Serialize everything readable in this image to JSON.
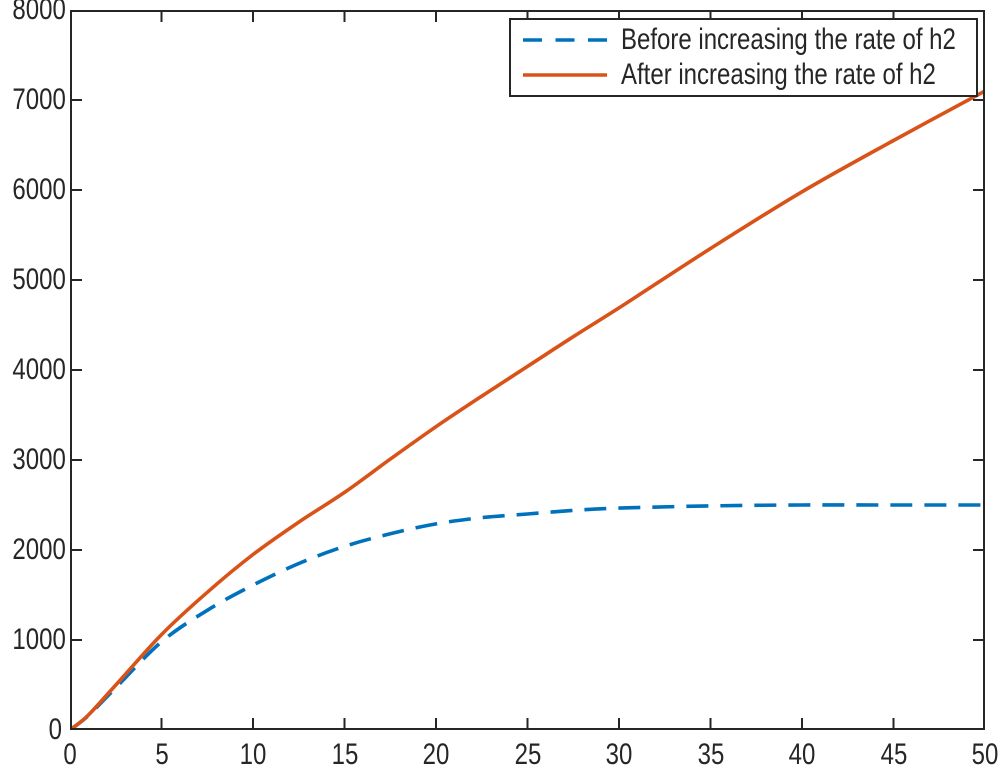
{
  "figure": {
    "background": "#ffffff",
    "axes_color": "#262626",
    "text_color": "#262626"
  },
  "chart_data": {
    "type": "line",
    "title": "",
    "xlabel": "",
    "ylabel": "",
    "xlim": [
      0,
      50
    ],
    "ylim": [
      0,
      8000
    ],
    "x_ticks": [
      0,
      5,
      10,
      15,
      20,
      25,
      30,
      35,
      40,
      45,
      50
    ],
    "y_ticks": [
      0,
      1000,
      2000,
      3000,
      4000,
      5000,
      6000,
      7000,
      8000
    ],
    "grid": false,
    "box": true,
    "tick_direction": "in",
    "legend_position": "top-right",
    "x": [
      0,
      1,
      2.5,
      5,
      7.5,
      10,
      12.5,
      15,
      17.5,
      20,
      22.5,
      25,
      27.5,
      30,
      35,
      40,
      45,
      50
    ],
    "series": [
      {
        "name": "Before increasing the rate of h2",
        "style": "dashed",
        "color": "#0072BD",
        "values": [
          0,
          160,
          470,
          980,
          1330,
          1610,
          1850,
          2040,
          2180,
          2290,
          2360,
          2400,
          2440,
          2465,
          2490,
          2500,
          2500,
          2500
        ]
      },
      {
        "name": "After increasing the rate of h2",
        "style": "solid",
        "color": "#D95319",
        "values": [
          0,
          165,
          500,
          1060,
          1530,
          1950,
          2310,
          2640,
          3010,
          3370,
          3710,
          4040,
          4370,
          4690,
          5350,
          5980,
          6550,
          7100
        ]
      }
    ]
  }
}
